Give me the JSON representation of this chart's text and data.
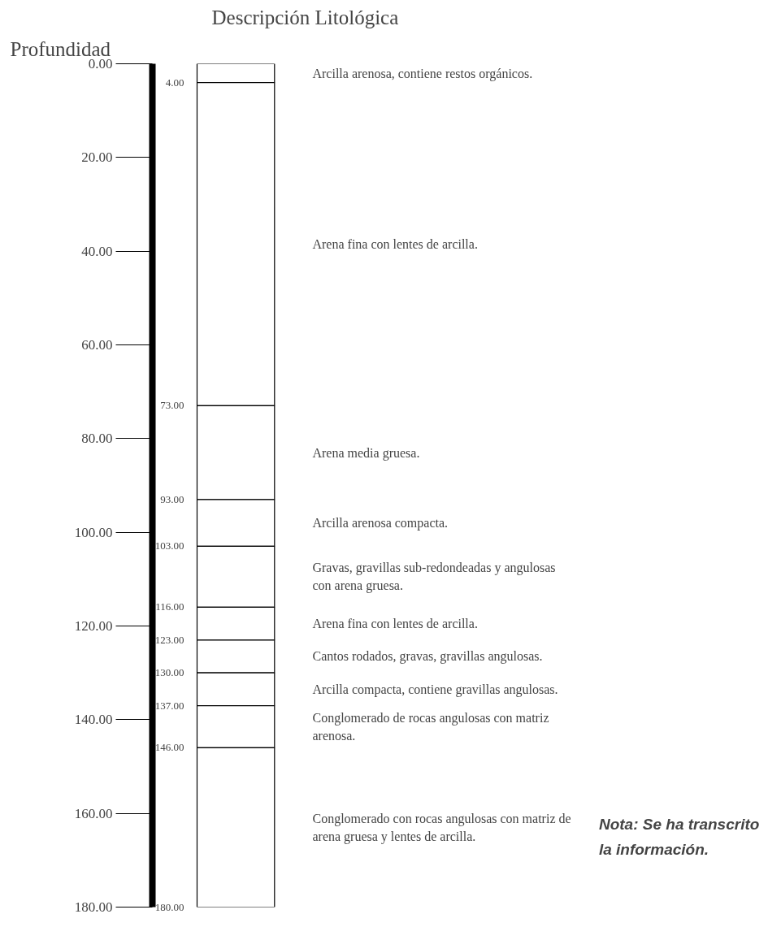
{
  "chart_data": {
    "type": "bar",
    "title": "Descripción Litológica",
    "ylabel": "Profundidad",
    "categories": [
      null
    ],
    "stacked": true,
    "series": [
      {
        "color": "#ffffff",
        "values": [
          4
        ]
      },
      {
        "color": "#ffffff",
        "values": [
          69
        ]
      },
      {
        "color": "#ffffff",
        "values": [
          20
        ]
      },
      {
        "color": "#ffffff",
        "values": [
          10
        ]
      },
      {
        "color": "#ffffff",
        "values": [
          13
        ]
      },
      {
        "color": "#ffffff",
        "values": [
          7
        ]
      },
      {
        "color": "#ffffff",
        "values": [
          7
        ]
      },
      {
        "color": "#ffffff",
        "values": [
          7
        ]
      },
      {
        "color": "#ffffff",
        "values": [
          9
        ]
      },
      {
        "color": "#ffffff",
        "values": [
          34
        ]
      }
    ],
    "ylim": [
      180,
      0
    ],
    "yticks": [
      {
        "value": 0,
        "label": "0.00"
      },
      {
        "value": 20,
        "label": "20.00"
      },
      {
        "value": 40,
        "label": "40.00"
      },
      {
        "value": 60,
        "label": "60.00"
      },
      {
        "value": 80,
        "label": "80.00"
      },
      {
        "value": 100,
        "label": "100.00"
      },
      {
        "value": 120,
        "label": "120.00"
      },
      {
        "value": 140,
        "label": "140.00"
      },
      {
        "value": 160,
        "label": "160.00"
      },
      {
        "value": 180,
        "label": "180.00"
      }
    ],
    "y2lim": [
      180,
      0
    ],
    "y2ticks": [
      {
        "value": 4,
        "label": "4.00"
      },
      {
        "value": 73,
        "label": "73.00"
      },
      {
        "value": 93,
        "label": "93.00"
      },
      {
        "value": 103,
        "label": "103.00"
      },
      {
        "value": 116,
        "label": "116.00"
      },
      {
        "value": 123,
        "label": "123.00"
      },
      {
        "value": 130,
        "label": "130.00"
      },
      {
        "value": 137,
        "label": "137.00"
      },
      {
        "value": 146,
        "label": "146.00"
      },
      {
        "value": 180,
        "label": "180.00"
      }
    ],
    "annotations": [
      "Arcilla arenosa, contiene restos orgánicos.",
      "Arena fina con lentes de arcilla.",
      "Arena media gruesa.",
      "Arcilla arenosa compacta.",
      "Gravas, gravillas sub-redondeadas y angulosas con arena gruesa.",
      "Arena fina con lentes de arcilla.",
      "Cantos rodados, gravas, gravillas angulosas.",
      "Arcilla compacta, contiene gravillas angulosas.",
      "Conglomerado de rocas angulosas con matriz arenosa.",
      "Conglomerado con rocas angulosas con matriz de arena gruesa y lentes de arcilla.",
      "Nota: Se ha transcrito la información."
    ]
  }
}
